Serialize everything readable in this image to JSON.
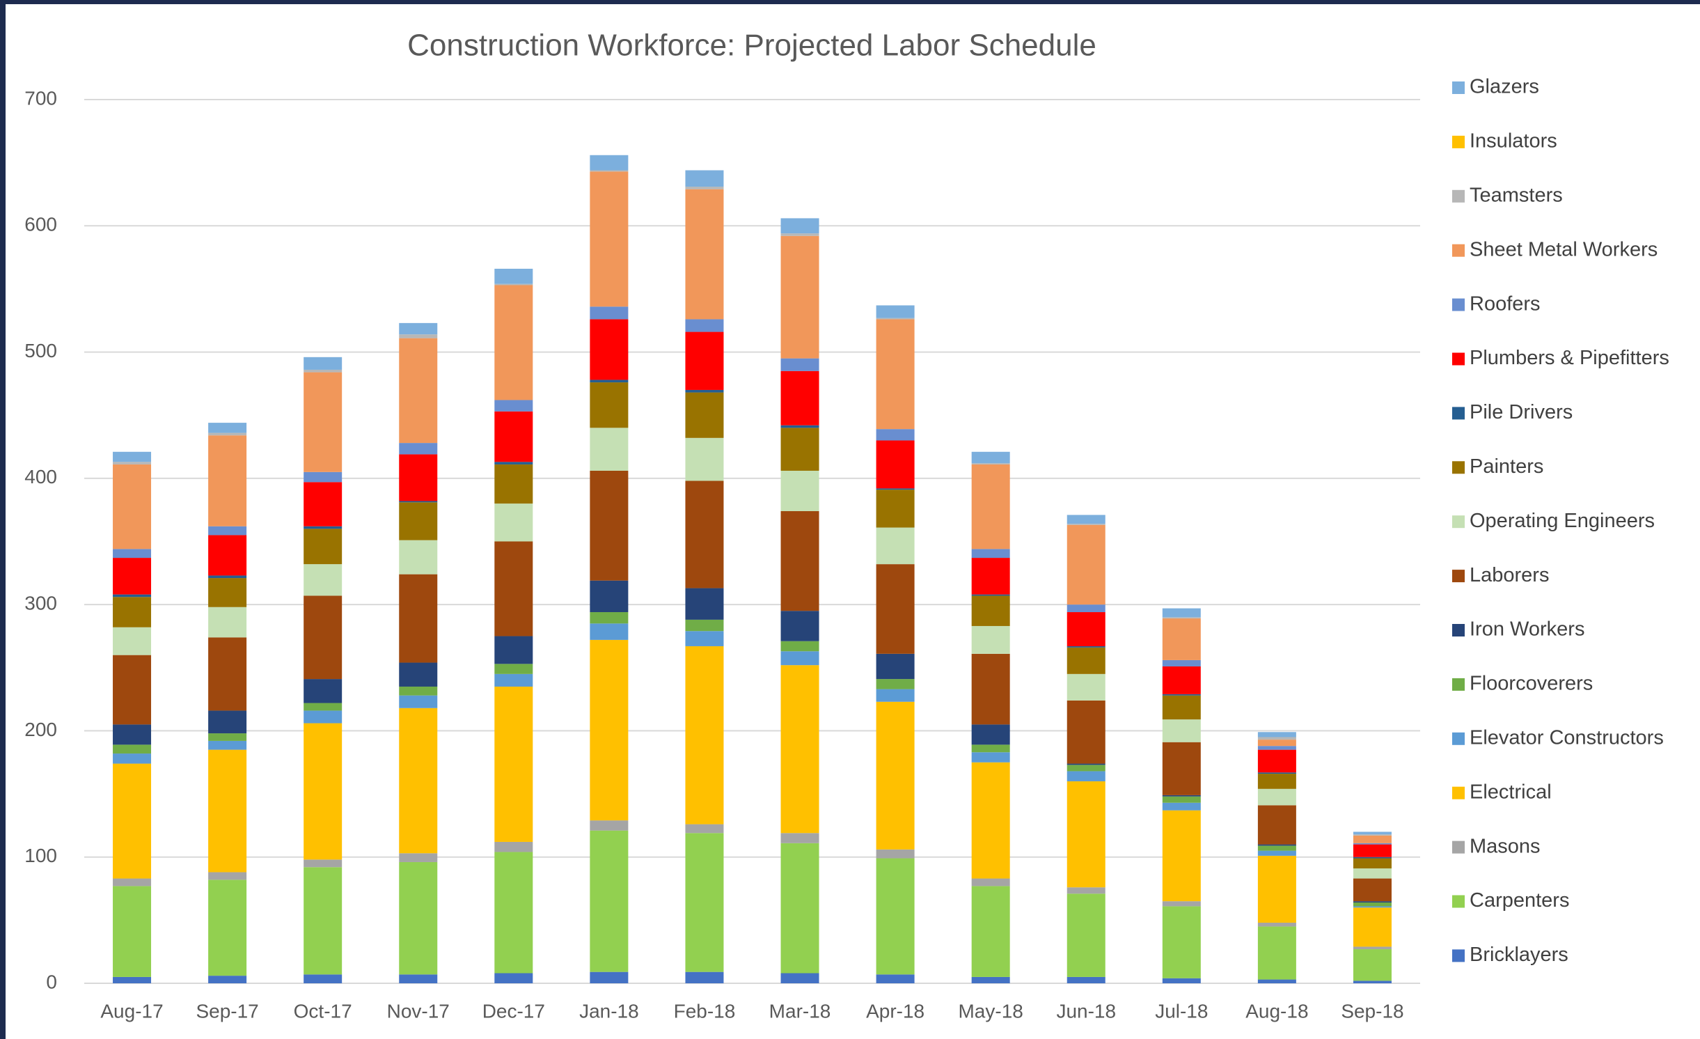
{
  "chart_data": {
    "type": "stacked_bar",
    "title": "Construction Workforce: Projected Labor Schedule",
    "categories": [
      "Aug-17",
      "Sep-17",
      "Oct-17",
      "Nov-17",
      "Dec-17",
      "Jan-18",
      "Feb-18",
      "Mar-18",
      "Apr-18",
      "May-18",
      "Jun-18",
      "Jul-18",
      "Aug-18",
      "Sep-18"
    ],
    "ylim": [
      0,
      700
    ],
    "yticks": [
      0,
      100,
      200,
      300,
      400,
      500,
      600,
      700
    ],
    "grid": true,
    "legend": "right",
    "series": [
      {
        "name": "Bricklayers",
        "color": "#4472c4",
        "values": [
          5,
          6,
          7,
          7,
          8,
          9,
          9,
          8,
          7,
          5,
          5,
          4,
          3,
          2
        ]
      },
      {
        "name": "Carpenters",
        "color": "#92d050",
        "values": [
          72,
          76,
          85,
          89,
          96,
          112,
          110,
          103,
          92,
          72,
          66,
          57,
          42,
          25
        ]
      },
      {
        "name": "Masons",
        "color": "#a5a5a5",
        "values": [
          6,
          6,
          6,
          7,
          8,
          8,
          7,
          8,
          7,
          6,
          5,
          4,
          3,
          2
        ]
      },
      {
        "name": "Electrical",
        "color": "#ffc000",
        "values": [
          91,
          97,
          108,
          115,
          123,
          143,
          141,
          133,
          117,
          92,
          84,
          72,
          53,
          31
        ]
      },
      {
        "name": "Elevator Constructors",
        "color": "#5b9bd5",
        "values": [
          8,
          7,
          10,
          10,
          10,
          13,
          12,
          11,
          10,
          8,
          8,
          6,
          4,
          1
        ]
      },
      {
        "name": "Floorcoverers",
        "color": "#70ad47",
        "values": [
          7,
          6,
          6,
          7,
          8,
          9,
          9,
          8,
          8,
          6,
          5,
          5,
          4,
          3
        ]
      },
      {
        "name": "Iron Workers",
        "color": "#264478",
        "values": [
          16,
          18,
          19,
          19,
          22,
          25,
          25,
          24,
          20,
          16,
          1,
          1,
          1,
          1
        ]
      },
      {
        "name": "Laborers",
        "color": "#9e480e",
        "values": [
          55,
          58,
          66,
          70,
          75,
          87,
          85,
          79,
          71,
          56,
          50,
          42,
          31,
          18
        ]
      },
      {
        "name": "Operating Engineers",
        "color": "#c5e0b4",
        "values": [
          22,
          24,
          25,
          27,
          30,
          34,
          34,
          32,
          29,
          22,
          21,
          18,
          13,
          8
        ]
      },
      {
        "name": "Painters",
        "color": "#997300",
        "values": [
          24,
          23,
          28,
          30,
          31,
          36,
          36,
          34,
          30,
          24,
          21,
          19,
          12,
          8
        ]
      },
      {
        "name": "Pile Drivers",
        "color": "#255e91",
        "values": [
          2,
          2,
          2,
          1,
          2,
          2,
          2,
          2,
          1,
          1,
          1,
          1,
          1,
          1
        ]
      },
      {
        "name": "Plumbers & Pipefitters",
        "color": "#ff0000",
        "values": [
          29,
          32,
          35,
          37,
          40,
          48,
          46,
          43,
          38,
          29,
          27,
          22,
          18,
          10
        ]
      },
      {
        "name": "Roofers",
        "color": "#698ed0",
        "values": [
          7,
          7,
          8,
          9,
          9,
          10,
          10,
          10,
          9,
          7,
          6,
          5,
          3,
          1
        ]
      },
      {
        "name": "Sheet Metal Workers",
        "color": "#f1975a",
        "values": [
          67,
          72,
          79,
          83,
          91,
          107,
          103,
          97,
          87,
          67,
          63,
          33,
          5,
          6
        ]
      },
      {
        "name": "Teamsters",
        "color": "#b7b7b7",
        "values": [
          2,
          2,
          2,
          3,
          1,
          1,
          2,
          2,
          1,
          1,
          1,
          1,
          2,
          1
        ]
      },
      {
        "name": "Insulators",
        "color": "#ffc000",
        "values": [
          0,
          0,
          0,
          0,
          0,
          0,
          0,
          0,
          0,
          0,
          0,
          0,
          0,
          0
        ]
      },
      {
        "name": "Glazers",
        "color": "#7cafdd",
        "values": [
          8,
          8,
          10,
          9,
          12,
          12,
          13,
          12,
          10,
          9,
          7,
          7,
          4,
          2
        ]
      }
    ]
  }
}
